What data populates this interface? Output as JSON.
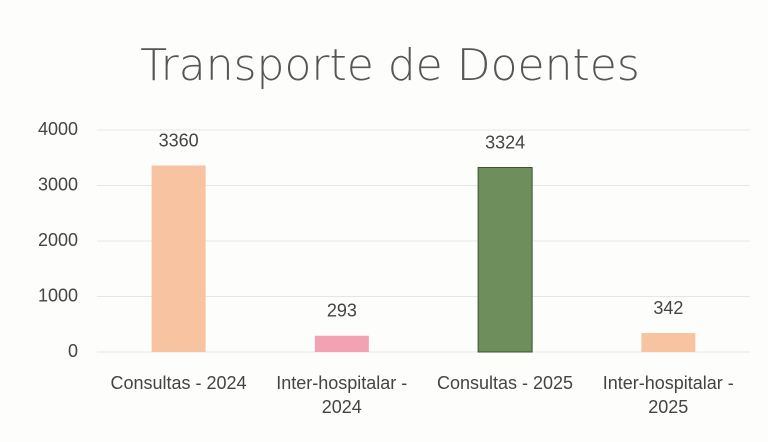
{
  "chart_data": {
    "type": "bar",
    "title": "Transporte de Doentes",
    "categories": [
      "Consultas - 2024",
      "Inter-hospitalar - 2024",
      "Consultas - 2025",
      "Inter-hospitalar - 2025"
    ],
    "values": [
      3360,
      293,
      3324,
      342
    ],
    "colors": [
      "#f8c3a0",
      "#f3a2b3",
      "#6e8f5b",
      "#f8c3a0"
    ],
    "ylim": [
      0,
      4000
    ],
    "yticks": [
      0,
      1000,
      2000,
      3000,
      4000
    ],
    "grid": true
  }
}
